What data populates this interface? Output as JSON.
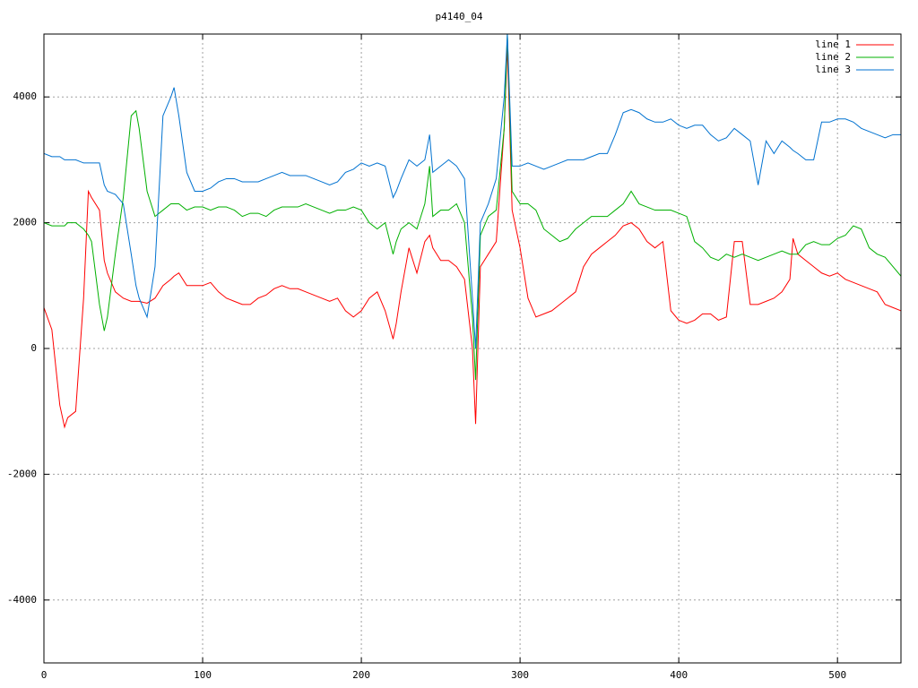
{
  "chart_data": {
    "type": "line",
    "title": "p4140_04",
    "x": [
      0,
      5,
      10,
      13,
      15,
      20,
      25,
      28,
      30,
      35,
      38,
      40,
      45,
      50,
      55,
      58,
      60,
      65,
      70,
      75,
      80,
      82,
      85,
      90,
      95,
      100,
      105,
      110,
      115,
      120,
      125,
      130,
      135,
      140,
      145,
      150,
      155,
      160,
      165,
      170,
      175,
      180,
      185,
      190,
      195,
      200,
      205,
      210,
      215,
      220,
      222,
      225,
      230,
      235,
      240,
      243,
      245,
      250,
      255,
      260,
      265,
      270,
      272,
      275,
      280,
      285,
      290,
      292,
      295,
      300,
      305,
      310,
      315,
      320,
      325,
      330,
      335,
      340,
      345,
      350,
      355,
      360,
      365,
      370,
      375,
      380,
      385,
      390,
      395,
      400,
      405,
      410,
      415,
      420,
      425,
      430,
      435,
      440,
      445,
      450,
      455,
      460,
      465,
      470,
      472,
      475,
      480,
      485,
      490,
      495,
      500,
      505,
      510,
      515,
      520,
      525,
      530,
      535,
      540
    ],
    "series": [
      {
        "name": "line 1",
        "color": "#ff0000",
        "values": [
          650,
          300,
          -900,
          -1250,
          -1100,
          -1000,
          800,
          2500,
          2400,
          2200,
          1400,
          1200,
          900,
          800,
          750,
          750,
          750,
          720,
          800,
          1000,
          1100,
          1150,
          1200,
          1000,
          1000,
          1000,
          1050,
          900,
          800,
          750,
          700,
          700,
          800,
          850,
          950,
          1000,
          950,
          950,
          900,
          850,
          800,
          750,
          800,
          600,
          500,
          600,
          800,
          900,
          600,
          150,
          400,
          900,
          1600,
          1200,
          1700,
          1800,
          1600,
          1400,
          1400,
          1300,
          1100,
          0,
          -1200,
          1300,
          1500,
          1700,
          3500,
          4800,
          2200,
          1600,
          800,
          500,
          550,
          600,
          700,
          800,
          900,
          1300,
          1500,
          1600,
          1700,
          1800,
          1950,
          2000,
          1900,
          1700,
          1600,
          1700,
          600,
          450,
          400,
          450,
          550,
          550,
          450,
          500,
          1700,
          1700,
          700,
          700,
          750,
          800,
          900,
          1100,
          1750,
          1500,
          1400,
          1300,
          1200,
          1150,
          1200,
          1100,
          1050,
          1000,
          950,
          900,
          700,
          650,
          600
        ]
      },
      {
        "name": "line 2",
        "color": "#00b000",
        "values": [
          2000,
          1950,
          1950,
          1950,
          2000,
          2000,
          1900,
          1800,
          1700,
          700,
          280,
          500,
          1500,
          2400,
          3700,
          3780,
          3500,
          2500,
          2100,
          2200,
          2300,
          2300,
          2300,
          2200,
          2250,
          2250,
          2200,
          2250,
          2250,
          2200,
          2100,
          2150,
          2150,
          2100,
          2200,
          2250,
          2250,
          2250,
          2300,
          2250,
          2200,
          2150,
          2200,
          2200,
          2250,
          2200,
          2000,
          1900,
          2000,
          1500,
          1700,
          1900,
          2000,
          1900,
          2300,
          2900,
          2100,
          2200,
          2200,
          2300,
          2000,
          500,
          -500,
          1800,
          2100,
          2200,
          3500,
          5000,
          2500,
          2300,
          2300,
          2200,
          1900,
          1800,
          1700,
          1750,
          1900,
          2000,
          2100,
          2100,
          2100,
          2200,
          2300,
          2500,
          2300,
          2250,
          2200,
          2200,
          2200,
          2150,
          2100,
          1700,
          1600,
          1450,
          1400,
          1500,
          1450,
          1500,
          1450,
          1400,
          1450,
          1500,
          1550,
          1500,
          1500,
          1500,
          1650,
          1700,
          1650,
          1650,
          1750,
          1800,
          1950,
          1900,
          1600,
          1500,
          1450,
          1300,
          1150
        ]
      },
      {
        "name": "line 3",
        "color": "#0072d0",
        "values": [
          3100,
          3050,
          3050,
          3000,
          3000,
          3000,
          2950,
          2950,
          2950,
          2950,
          2600,
          2500,
          2450,
          2300,
          1500,
          1000,
          800,
          500,
          1300,
          3700,
          4000,
          4150,
          3700,
          2800,
          2500,
          2500,
          2550,
          2650,
          2700,
          2700,
          2650,
          2650,
          2650,
          2700,
          2750,
          2800,
          2750,
          2750,
          2750,
          2700,
          2650,
          2600,
          2650,
          2800,
          2850,
          2950,
          2900,
          2950,
          2900,
          2400,
          2500,
          2700,
          3000,
          2900,
          3000,
          3400,
          2800,
          2900,
          3000,
          2900,
          2700,
          800,
          0,
          2000,
          2300,
          2700,
          4000,
          5000,
          2900,
          2900,
          2950,
          2900,
          2850,
          2900,
          2950,
          3000,
          3000,
          3000,
          3050,
          3100,
          3100,
          3400,
          3750,
          3800,
          3750,
          3650,
          3600,
          3600,
          3650,
          3550,
          3500,
          3550,
          3550,
          3400,
          3300,
          3350,
          3500,
          3400,
          3300,
          2600,
          3300,
          3100,
          3300,
          3200,
          3150,
          3100,
          3000,
          3000,
          3600,
          3600,
          3650,
          3650,
          3600,
          3500,
          3450,
          3400,
          3350,
          3400,
          3400
        ]
      }
    ],
    "xlim": [
      0,
      540
    ],
    "ylim": [
      -5000,
      5000
    ],
    "xticks": [
      0,
      100,
      200,
      300,
      400,
      500
    ],
    "yticks": [
      -4000,
      -2000,
      0,
      2000,
      4000
    ],
    "grid": true,
    "legend": "top-right"
  }
}
